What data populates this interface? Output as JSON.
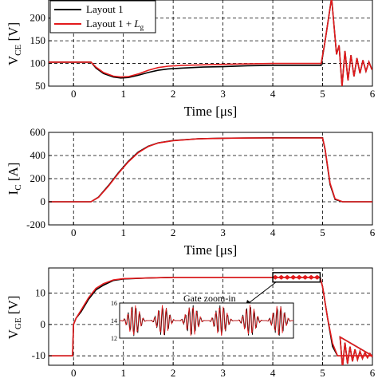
{
  "chart_data": [
    {
      "type": "line",
      "ylabel_main": "V",
      "ylabel_sub": "CE",
      "ylabel_unit": " [V]",
      "xlabel": "Time [μs]",
      "xlim": [
        -0.5,
        6
      ],
      "ylim": [
        50,
        240
      ],
      "xticks": [
        "0",
        "1",
        "2",
        "3",
        "4",
        "5",
        "6"
      ],
      "yticks": [
        "50",
        "100",
        "150",
        "200"
      ],
      "legend_location": "top-left",
      "legend": {
        "entry1": "Layout 1",
        "entry2_prefix": "Layout 1 + ",
        "entry2_main": "L",
        "entry2_sub": "g"
      },
      "colors": {
        "layout1": "#000000",
        "layout1_lg": "#e31a1c"
      },
      "series": [
        {
          "name": "Layout 1",
          "color": "#000000",
          "x": [
            -0.5,
            0.35,
            0.45,
            0.6,
            0.8,
            0.95,
            1.1,
            1.3,
            1.5,
            1.7,
            1.9,
            2.2,
            2.6,
            3.0,
            3.5,
            4.0,
            4.5,
            4.97
          ],
          "y": [
            103,
            103,
            90,
            78,
            70,
            68,
            69,
            74,
            80,
            85,
            88,
            90,
            92,
            93,
            95,
            96,
            96,
            96
          ]
        },
        {
          "name": "Layout 1 + Lg",
          "color": "#e31a1c",
          "x": [
            -0.5,
            0.35,
            0.45,
            0.6,
            0.8,
            0.95,
            1.1,
            1.3,
            1.5,
            1.7,
            1.9,
            2.2,
            2.6,
            3.0,
            3.5,
            4.0,
            4.5,
            4.97
          ],
          "y": [
            103,
            103,
            92,
            80,
            72,
            70,
            71,
            77,
            85,
            91,
            94,
            96,
            97,
            98,
            99,
            100,
            100,
            100
          ]
        }
      ],
      "turnoff_spike": {
        "x_start": 4.97,
        "peak_x": 5.18,
        "peak_y": 245,
        "settle_y": 50
      }
    },
    {
      "type": "line",
      "ylabel_main": "I",
      "ylabel_sub": "C",
      "ylabel_unit": " [A]",
      "xlabel": "Time [μs]",
      "xlim": [
        -0.5,
        6
      ],
      "ylim": [
        -200,
        600
      ],
      "xticks": [
        "0",
        "1",
        "2",
        "3",
        "4",
        "5",
        "6"
      ],
      "yticks": [
        "-200",
        "0",
        "200",
        "400",
        "600"
      ],
      "series": [
        {
          "name": "Layout 1",
          "color": "#000000",
          "x": [
            -0.5,
            0.35,
            0.5,
            0.7,
            0.9,
            1.1,
            1.3,
            1.5,
            1.7,
            2.0,
            2.5,
            3.0,
            3.5,
            4.0,
            4.5,
            5.0,
            5.05,
            5.15,
            5.25,
            5.4,
            6.0
          ],
          "y": [
            0,
            0,
            40,
            140,
            250,
            350,
            430,
            480,
            510,
            530,
            545,
            550,
            552,
            553,
            553,
            553,
            450,
            150,
            20,
            0,
            0
          ]
        },
        {
          "name": "Layout 1 + Lg",
          "color": "#e31a1c",
          "x": [
            -0.5,
            0.35,
            0.5,
            0.7,
            0.9,
            1.1,
            1.3,
            1.5,
            1.7,
            2.0,
            2.5,
            3.0,
            3.5,
            4.0,
            4.5,
            5.0,
            5.05,
            5.15,
            5.25,
            5.4,
            6.0
          ],
          "y": [
            0,
            0,
            38,
            135,
            245,
            345,
            425,
            478,
            508,
            528,
            544,
            549,
            551,
            552,
            552,
            552,
            455,
            160,
            25,
            0,
            0
          ]
        }
      ]
    },
    {
      "type": "line",
      "ylabel_main": "V",
      "ylabel_sub": "GE",
      "ylabel_unit": " [V]",
      "xlabel": "",
      "xlim": [
        -0.5,
        6
      ],
      "ylim": [
        -13,
        18
      ],
      "xticks": [
        "0",
        "1",
        "2",
        "3",
        "4",
        "5",
        "6"
      ],
      "yticks": [
        "-10",
        "0",
        "10"
      ],
      "series": [
        {
          "name": "Layout 1",
          "color": "#000000",
          "x": [
            -0.5,
            -0.02,
            0.0,
            0.05,
            0.15,
            0.3,
            0.45,
            0.6,
            0.8,
            1.0,
            1.5,
            2.0,
            3.0,
            4.0,
            4.95,
            5.0,
            5.1,
            5.2,
            5.3,
            6.0
          ],
          "y": [
            -10,
            -10,
            0,
            2,
            4,
            8,
            11,
            12.5,
            14,
            14.5,
            14.8,
            15,
            15,
            15,
            15,
            12,
            2,
            -7,
            -10,
            -10
          ]
        },
        {
          "name": "Layout 1 + Lg",
          "color": "#e31a1c",
          "x": [
            -0.5,
            -0.02,
            0.0,
            0.05,
            0.15,
            0.3,
            0.45,
            0.6,
            0.8,
            1.0,
            1.5,
            2.0,
            3.0,
            4.0,
            4.95,
            5.0,
            5.1,
            5.2,
            5.3,
            6.0
          ],
          "y": [
            -10,
            -10,
            0,
            2,
            4.5,
            8.5,
            11.5,
            13,
            14.2,
            14.6,
            14.8,
            15,
            15,
            15,
            15,
            12,
            2,
            -6,
            -10,
            -10
          ]
        }
      ],
      "zoom_window": {
        "x": [
          4.0,
          4.95
        ],
        "y": [
          13.5,
          16.5
        ]
      },
      "annotation": "Gate zoom-in",
      "inset": {
        "yticks": [
          "12",
          "14",
          "16"
        ],
        "ylim": [
          12,
          16
        ],
        "center": 14
      }
    }
  ]
}
